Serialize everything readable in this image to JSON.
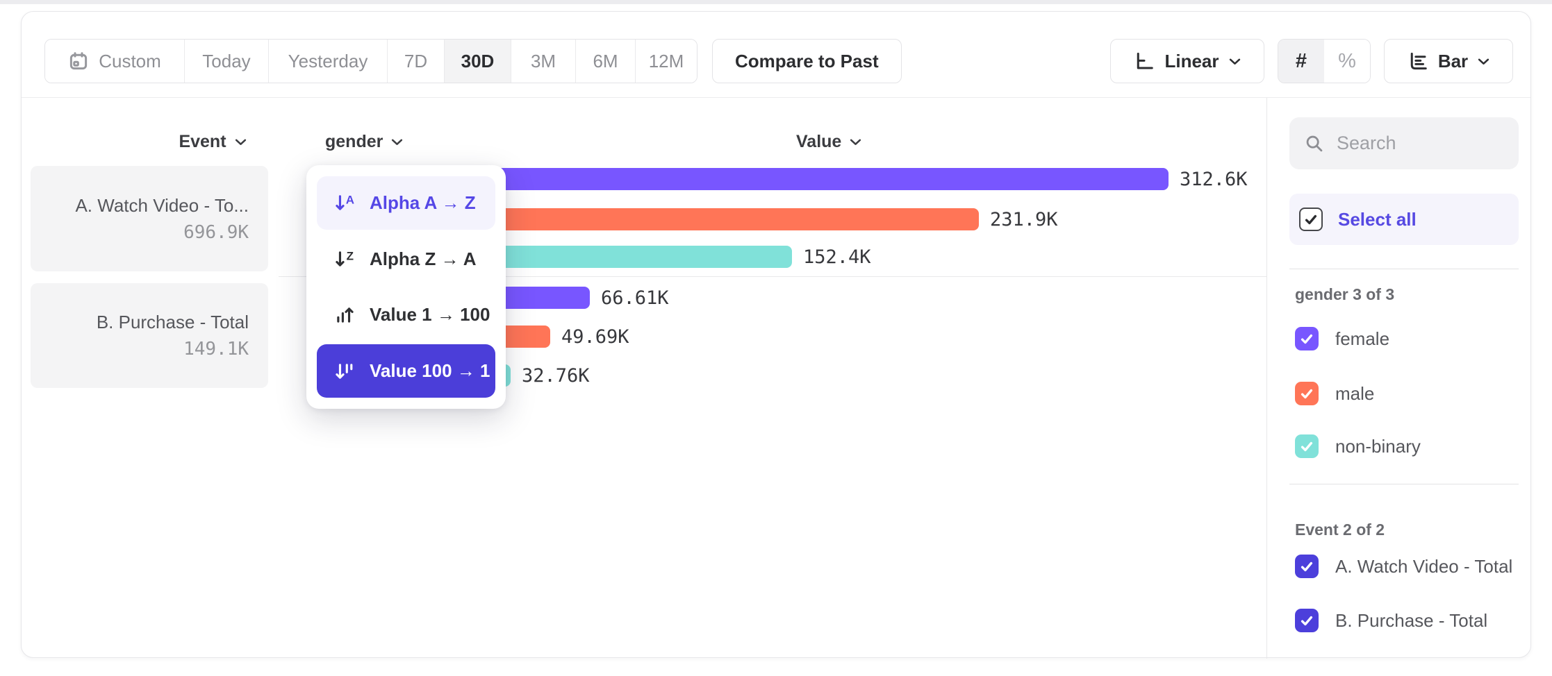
{
  "toolbar": {
    "date_ranges": {
      "options": [
        "Custom",
        "Today",
        "Yesterday",
        "7D",
        "30D",
        "3M",
        "6M",
        "12M"
      ],
      "selected": "30D",
      "custom_icon": "calendar-icon"
    },
    "compare_button": "Compare to Past",
    "scale_selector": {
      "label": "Linear",
      "icon": "linear-scale-icon"
    },
    "value_format": {
      "options": [
        "#",
        "%"
      ],
      "selected": "#"
    },
    "chart_type_selector": {
      "label": "Bar",
      "icon": "bar-chart-icon"
    }
  },
  "columns": {
    "event": "Event",
    "breakdown": "gender",
    "value": "Value"
  },
  "event_list": [
    {
      "name": "A. Watch Video - To...",
      "value": "696.9K"
    },
    {
      "name": "B. Purchase - Total",
      "value": "149.1K"
    }
  ],
  "sort_menu": {
    "items": [
      {
        "label": "Alpha A → Z",
        "icon": "sort-alpha-asc-icon",
        "state": "highlighted"
      },
      {
        "label": "Alpha Z → A",
        "icon": "sort-alpha-desc-icon",
        "state": "normal"
      },
      {
        "label": "Value 1 → 100",
        "icon": "sort-value-asc-icon",
        "state": "normal"
      },
      {
        "label": "Value 100 → 1",
        "icon": "sort-value-desc-icon",
        "state": "selected"
      }
    ]
  },
  "chart_data": {
    "type": "bar",
    "orientation": "horizontal",
    "title": "",
    "value_axis_label": "Value",
    "categories": [
      "female",
      "male",
      "non-binary"
    ],
    "series": [
      {
        "name": "A. Watch Video - Total",
        "values": [
          312600,
          231900,
          152400
        ],
        "labels": [
          "312.6K",
          "231.9K",
          "152.4K"
        ]
      },
      {
        "name": "B. Purchase - Total",
        "values": [
          66610,
          49690,
          32760
        ],
        "labels": [
          "66.61K",
          "49.69K",
          "32.76K"
        ]
      }
    ],
    "category_colors": {
      "female": "#7856FF",
      "male": "#FF7557",
      "non-binary": "#80E1D9"
    },
    "xlim": [
      0,
      320000
    ],
    "gridlines": false,
    "bar_value_labels": true,
    "legend_position": "right-sidebar"
  },
  "sidebar": {
    "search": {
      "placeholder": "Search",
      "icon": "search-icon"
    },
    "select_all": {
      "label": "Select all",
      "checked": true
    },
    "groups": [
      {
        "title": "gender 3 of 3",
        "items": [
          {
            "label": "female",
            "checked": true,
            "color": "#7856FF"
          },
          {
            "label": "male",
            "checked": true,
            "color": "#FF7557"
          },
          {
            "label": "non-binary",
            "checked": true,
            "color": "#80E1D9"
          }
        ]
      },
      {
        "title": "Event 2 of 2",
        "items": [
          {
            "label": "A. Watch Video - Total",
            "checked": true,
            "color": "#4C3FDB"
          },
          {
            "label": "B. Purchase - Total",
            "checked": true,
            "color": "#4C3FDB"
          }
        ]
      }
    ]
  },
  "colors": {
    "accent": "#4B3ED9",
    "purple": "#7856FF",
    "orange": "#FF7557",
    "teal": "#80E1D9",
    "highlight_bg": "#F4F3FD"
  }
}
